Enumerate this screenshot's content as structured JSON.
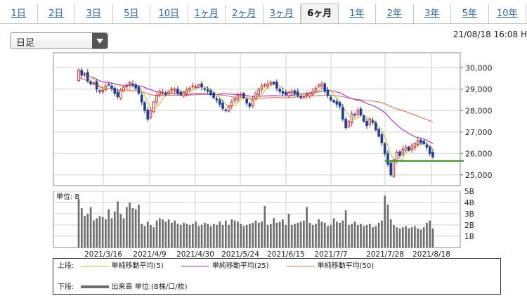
{
  "tabs": [
    {
      "label": "1日",
      "active": false
    },
    {
      "label": "2日",
      "active": false
    },
    {
      "label": "3日",
      "active": false
    },
    {
      "label": "5日",
      "active": false
    },
    {
      "label": "10日",
      "active": false
    },
    {
      "label": "1ヶ月",
      "active": false
    },
    {
      "label": "2ヶ月",
      "active": false
    },
    {
      "label": "3ヶ月",
      "active": false
    },
    {
      "label": "6ヶ月",
      "active": true
    },
    {
      "label": "1年",
      "active": false
    },
    {
      "label": "2年",
      "active": false
    },
    {
      "label": "3年",
      "active": false
    },
    {
      "label": "5年",
      "active": false
    },
    {
      "label": "10年",
      "active": false
    }
  ],
  "period_select": {
    "value": "日足"
  },
  "timestamp": "21/08/18 16:08 H",
  "legend": {
    "upper_label": "上段:",
    "lower_label": "下段:",
    "ma5": "単純移動平均(5)",
    "ma25": "単純移動平均(25)",
    "ma50": "単純移動平均(50)",
    "volume": "出来高 単位:(B株/口/枚)"
  },
  "colors": {
    "up": "#d62a2a",
    "down": "#1f3f9e",
    "ma5": "#c8c832",
    "ma25": "#b03cc8",
    "ma50": "#e07a5a",
    "support": "#3a9a22",
    "volume": "#6e6e6e"
  },
  "chart_data": {
    "type": "candlestick",
    "price_ylim": [
      24500,
      30700
    ],
    "price_ticks": [
      25000,
      26000,
      27000,
      28000,
      29000,
      30000
    ],
    "price_tick_labels": [
      "25,000",
      "26,000",
      "27,000",
      "28,000",
      "29,000",
      "30,000"
    ],
    "volume_unit_label": "単位: B",
    "volume_ylim": [
      0,
      5
    ],
    "volume_ticks": [
      1,
      2,
      3,
      4,
      5
    ],
    "volume_tick_labels": [
      "1B",
      "2B",
      "3B",
      "4B",
      "5B"
    ],
    "x_tick_labels": [
      "2021/3/16",
      "2021/4/9",
      "2021/4/30",
      "2021/5/24",
      "2021/6/15",
      "2021/7/7",
      "2021/7/28",
      "2021/8/18"
    ],
    "support_level": 25650,
    "close": [
      29900,
      29650,
      29700,
      29400,
      29250,
      29300,
      29000,
      28900,
      28950,
      29150,
      29200,
      29050,
      28800,
      28650,
      28950,
      29100,
      29150,
      29300,
      29200,
      29050,
      28800,
      28400,
      28000,
      27600,
      28000,
      28400,
      28700,
      28900,
      28850,
      28750,
      28900,
      29000,
      29000,
      28800,
      28750,
      28850,
      28950,
      29050,
      29150,
      29100,
      29200,
      29100,
      29000,
      28900,
      28750,
      28600,
      28500,
      28300,
      28100,
      28000,
      28200,
      28400,
      28550,
      28700,
      28750,
      28600,
      28350,
      28200,
      28500,
      28800,
      29000,
      29150,
      29200,
      29250,
      29300,
      29250,
      29050,
      28900,
      28800,
      28750,
      28850,
      28900,
      28800,
      28700,
      28600,
      28650,
      28750,
      28800,
      28900,
      29050,
      29200,
      29250,
      28900,
      28700,
      28500,
      28400,
      28300,
      28200,
      27600,
      27200,
      27500,
      27850,
      27800,
      28000,
      27800,
      27500,
      27300,
      27600,
      27450,
      27100,
      26800,
      26500,
      26000,
      25500,
      25000,
      25700,
      26050,
      25900,
      26200,
      26300,
      26150,
      26350,
      26450,
      26600,
      26500,
      26450,
      26300,
      26000,
      25850
    ],
    "volume": [
      4.3,
      3.5,
      2.8,
      3.0,
      3.6,
      2.4,
      2.6,
      2.8,
      2.7,
      2.5,
      3.4,
      2.6,
      3.2,
      4.1,
      3.0,
      2.6,
      3.6,
      4.0,
      3.5,
      3.4,
      3.8,
      2.1,
      1.9,
      2.3,
      2.0,
      1.8,
      2.4,
      2.6,
      2.5,
      2.3,
      2.5,
      2.2,
      2.4,
      2.1,
      2.0,
      2.2,
      2.1,
      2.0,
      2.1,
      2.3,
      1.9,
      2.0,
      2.2,
      2.1,
      1.9,
      2.1,
      2.0,
      2.3,
      2.0,
      2.4,
      2.0,
      2.5,
      2.4,
      2.3,
      2.1,
      1.9,
      2.0,
      2.1,
      2.2,
      2.4,
      2.2,
      2.3,
      3.7,
      2.0,
      2.1,
      2.6,
      2.2,
      2.3,
      2.5,
      2.0,
      3.0,
      2.0,
      2.1,
      2.2,
      2.3,
      2.4,
      3.6,
      2.2,
      2.0,
      2.1,
      2.5,
      2.3,
      2.2,
      1.9,
      2.0,
      2.6,
      2.3,
      2.2,
      2.4,
      3.3,
      2.0,
      2.1,
      2.3,
      2.0,
      2.1,
      1.9,
      2.0,
      2.1,
      1.8,
      1.9,
      2.2,
      2.4,
      4.6,
      3.8,
      2.5,
      2.0,
      1.8,
      1.7,
      1.8,
      1.9,
      1.7,
      1.8,
      1.9,
      1.7,
      1.6,
      1.8,
      2.2,
      2.4,
      1.7
    ]
  }
}
